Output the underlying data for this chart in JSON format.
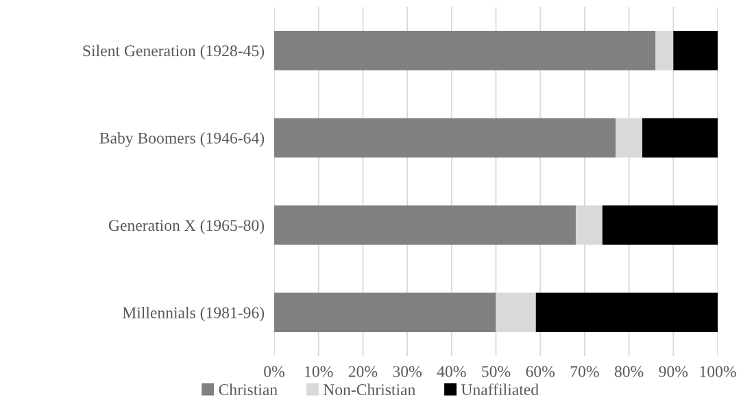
{
  "chart_data": {
    "type": "bar",
    "orientation": "horizontal",
    "stacked": true,
    "categories": [
      "Silent Generation (1928-45)",
      "Baby Boomers (1946-64)",
      "Generation X (1965-80)",
      "Millennials (1981-96)"
    ],
    "series": [
      {
        "name": "Christian",
        "color": "#808080",
        "values": [
          86,
          77,
          68,
          50
        ]
      },
      {
        "name": "Non-Christian",
        "color": "#d9d9d9",
        "values": [
          4,
          6,
          6,
          9
        ]
      },
      {
        "name": "Unaffiliated",
        "color": "#000000",
        "values": [
          10,
          17,
          26,
          41
        ]
      }
    ],
    "xlim": [
      0,
      100
    ],
    "xticks": [
      {
        "value": 0,
        "label": "0%"
      },
      {
        "value": 10,
        "label": "10%"
      },
      {
        "value": 20,
        "label": "20%"
      },
      {
        "value": 30,
        "label": "30%"
      },
      {
        "value": 40,
        "label": "40%"
      },
      {
        "value": 50,
        "label": "50%"
      },
      {
        "value": 60,
        "label": "60%"
      },
      {
        "value": 70,
        "label": "70%"
      },
      {
        "value": 80,
        "label": "80%"
      },
      {
        "value": 90,
        "label": "90%"
      },
      {
        "value": 100,
        "label": "100%"
      }
    ],
    "grid": "x",
    "legend": "bottom"
  }
}
